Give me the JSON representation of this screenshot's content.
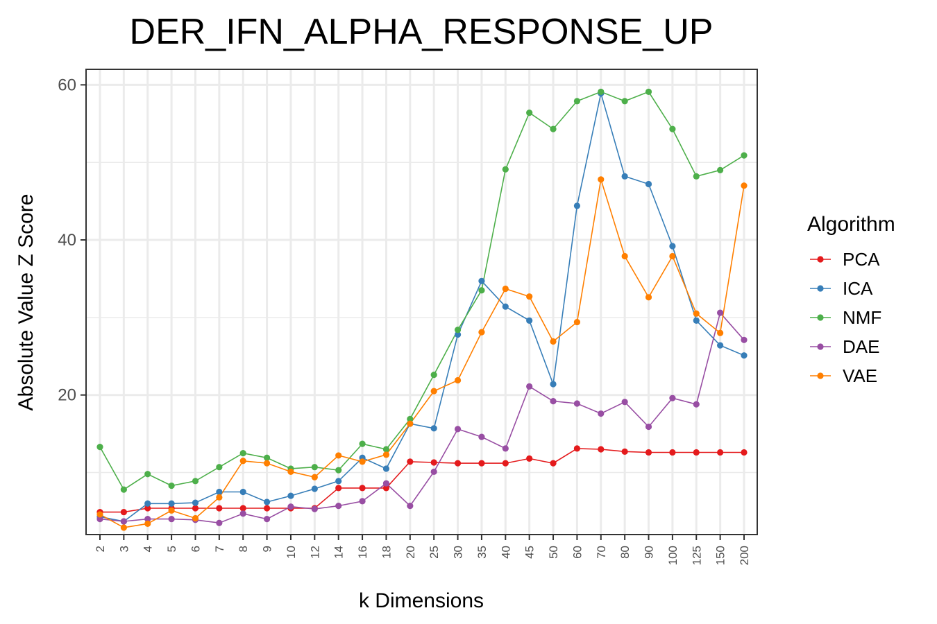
{
  "chart_data": {
    "type": "line",
    "title": "DER_IFN_ALPHA_RESPONSE_UP",
    "xlabel": "k Dimensions",
    "ylabel": "Absolute Value Z Score",
    "categories": [
      "2",
      "3",
      "4",
      "5",
      "6",
      "7",
      "8",
      "9",
      "10",
      "12",
      "14",
      "16",
      "18",
      "20",
      "25",
      "30",
      "35",
      "40",
      "45",
      "50",
      "60",
      "70",
      "80",
      "90",
      "100",
      "125",
      "150",
      "200"
    ],
    "ylim": [
      2,
      62
    ],
    "yticks": [
      20,
      40,
      60
    ],
    "grid": true,
    "legend": {
      "title": "Algorithm",
      "position": "right"
    },
    "series": [
      {
        "name": "PCA",
        "color": "#e41a1c",
        "values": [
          4.9,
          4.9,
          5.4,
          5.4,
          5.4,
          5.4,
          5.4,
          5.4,
          5.4,
          5.4,
          8.0,
          8.0,
          8.0,
          11.4,
          11.3,
          11.2,
          11.2,
          11.2,
          11.8,
          11.2,
          13.1,
          13.0,
          12.7,
          12.6,
          12.6,
          12.6,
          12.6,
          12.6
        ]
      },
      {
        "name": "ICA",
        "color": "#377eb8",
        "values": [
          4.3,
          3.7,
          6.0,
          6.0,
          6.1,
          7.5,
          7.5,
          6.2,
          7.0,
          7.9,
          8.9,
          11.9,
          10.5,
          16.3,
          15.7,
          27.8,
          34.7,
          31.4,
          29.6,
          21.4,
          44.4,
          58.9,
          48.2,
          47.2,
          39.2,
          29.6,
          26.4,
          25.1
        ]
      },
      {
        "name": "NMF",
        "color": "#4daf4a",
        "values": [
          13.3,
          7.8,
          9.8,
          8.3,
          8.9,
          10.7,
          12.5,
          11.9,
          10.5,
          10.7,
          10.3,
          13.7,
          13.0,
          16.9,
          22.6,
          28.4,
          33.5,
          49.1,
          56.4,
          54.3,
          57.9,
          59.1,
          57.9,
          59.1,
          54.3,
          48.2,
          49.0,
          50.9
        ]
      },
      {
        "name": "DAE",
        "color": "#984ea3",
        "values": [
          4.0,
          3.7,
          4.0,
          4.0,
          3.9,
          3.5,
          4.7,
          4.0,
          5.6,
          5.3,
          5.7,
          6.3,
          8.6,
          5.7,
          10.1,
          15.6,
          14.6,
          13.1,
          21.1,
          19.2,
          18.9,
          17.6,
          19.1,
          15.9,
          19.6,
          18.8,
          30.6,
          27.1
        ]
      },
      {
        "name": "VAE",
        "color": "#ff7f00",
        "values": [
          4.6,
          2.9,
          3.4,
          5.1,
          4.1,
          6.8,
          11.5,
          11.2,
          10.1,
          9.4,
          12.2,
          11.4,
          12.3,
          16.3,
          20.5,
          21.9,
          28.1,
          33.7,
          32.7,
          26.9,
          29.4,
          47.8,
          37.9,
          32.6,
          37.9,
          30.5,
          28.0,
          47.0
        ]
      }
    ]
  }
}
